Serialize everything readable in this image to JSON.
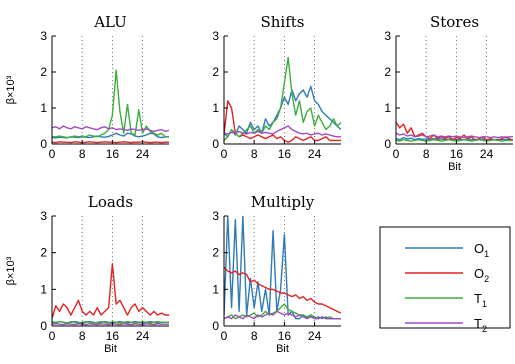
{
  "chart_data": [
    {
      "type": "line",
      "title": "ALU",
      "xlabel": "",
      "ylabel": "β×10³",
      "xlim": [
        0,
        31
      ],
      "ylim": [
        0,
        3
      ],
      "xticks": [
        0,
        8,
        16,
        24
      ],
      "yticks": [
        0,
        1,
        2,
        3
      ],
      "vlines": [
        8,
        16,
        24
      ],
      "series": [
        {
          "key": "O1",
          "values": [
            0.18,
            0.17,
            0.19,
            0.18,
            0.17,
            0.2,
            0.19,
            0.18,
            0.2,
            0.19,
            0.18,
            0.2,
            0.22,
            0.2,
            0.19,
            0.21,
            0.25,
            0.3,
            0.25,
            0.22,
            0.3,
            0.28,
            0.22,
            0.2,
            0.22,
            0.25,
            0.3,
            0.28,
            0.2,
            0.18,
            0.2,
            0.19
          ]
        },
        {
          "key": "O2",
          "values": [
            0.05,
            0.04,
            0.06,
            0.05,
            0.05,
            0.04,
            0.06,
            0.05,
            0.04,
            0.05,
            0.06,
            0.05,
            0.04,
            0.05,
            0.06,
            0.05,
            0.05,
            0.04,
            0.05,
            0.06,
            0.05,
            0.04,
            0.05,
            0.05,
            0.06,
            0.05,
            0.04,
            0.05,
            0.05,
            0.04,
            0.05,
            0.05
          ]
        },
        {
          "key": "T1",
          "values": [
            0.2,
            0.2,
            0.22,
            0.2,
            0.18,
            0.2,
            0.22,
            0.2,
            0.22,
            0.2,
            0.25,
            0.22,
            0.2,
            0.25,
            0.3,
            0.4,
            0.8,
            2.05,
            0.9,
            0.3,
            1.1,
            0.3,
            0.25,
            0.95,
            0.3,
            0.5,
            0.35,
            0.3,
            0.25,
            0.3,
            0.2,
            0.2
          ]
        },
        {
          "key": "T2",
          "values": [
            0.45,
            0.48,
            0.42,
            0.5,
            0.45,
            0.42,
            0.48,
            0.45,
            0.42,
            0.48,
            0.45,
            0.42,
            0.4,
            0.45,
            0.48,
            0.42,
            0.45,
            0.4,
            0.42,
            0.4,
            0.38,
            0.42,
            0.4,
            0.38,
            0.4,
            0.42,
            0.38,
            0.35,
            0.38,
            0.4,
            0.35,
            0.38
          ]
        }
      ]
    },
    {
      "type": "line",
      "title": "Shifts",
      "xlabel": "",
      "ylabel": "",
      "xlim": [
        0,
        31
      ],
      "ylim": [
        0,
        3
      ],
      "xticks": [
        0,
        8,
        16,
        24
      ],
      "yticks": [
        0,
        1,
        2,
        3
      ],
      "vlines": [
        8,
        16,
        24
      ],
      "series": [
        {
          "key": "O1",
          "values": [
            0.3,
            0.2,
            0.4,
            0.25,
            0.5,
            0.4,
            0.3,
            0.6,
            0.4,
            0.5,
            0.3,
            0.7,
            0.5,
            0.6,
            0.8,
            1.0,
            1.3,
            1.1,
            1.5,
            1.2,
            1.4,
            1.5,
            1.3,
            1.6,
            1.2,
            1.1,
            0.9,
            0.8,
            0.7,
            0.6,
            0.5,
            0.4
          ]
        },
        {
          "key": "O2",
          "values": [
            0.25,
            1.2,
            1.0,
            0.3,
            0.2,
            0.25,
            0.2,
            0.15,
            0.2,
            0.25,
            0.2,
            0.15,
            0.2,
            0.25,
            0.15,
            0.2,
            0.1,
            0.05,
            0.1,
            0.2,
            0.15,
            0.1,
            0.15,
            0.2,
            0.1,
            0.1,
            0.15,
            0.2,
            0.1,
            0.1,
            0.1,
            0.1
          ]
        },
        {
          "key": "T1",
          "values": [
            0.1,
            0.2,
            0.4,
            0.3,
            0.2,
            0.3,
            0.4,
            0.5,
            0.3,
            0.4,
            0.3,
            0.5,
            0.4,
            0.6,
            0.7,
            1.0,
            1.7,
            2.4,
            1.4,
            0.8,
            1.2,
            0.6,
            0.9,
            1.0,
            0.5,
            0.8,
            0.6,
            0.4,
            0.5,
            0.7,
            0.5,
            0.6
          ]
        },
        {
          "key": "T2",
          "values": [
            0.3,
            0.28,
            0.32,
            0.3,
            0.35,
            0.3,
            0.28,
            0.32,
            0.3,
            0.35,
            0.3,
            0.32,
            0.3,
            0.28,
            0.35,
            0.4,
            0.45,
            0.5,
            0.4,
            0.35,
            0.3,
            0.28,
            0.3,
            0.25,
            0.28,
            0.3,
            0.25,
            0.28,
            0.25,
            0.22,
            0.2,
            0.2
          ]
        }
      ]
    },
    {
      "type": "line",
      "title": "Stores",
      "xlabel": "Bit",
      "ylabel": "",
      "xlim": [
        0,
        31
      ],
      "ylim": [
        0,
        3
      ],
      "xticks": [
        0,
        8,
        16,
        24
      ],
      "yticks": [
        0,
        1,
        2,
        3
      ],
      "vlines": [
        8,
        16,
        24
      ],
      "series": [
        {
          "key": "O1",
          "values": [
            0.15,
            0.12,
            0.18,
            0.14,
            0.16,
            0.12,
            0.15,
            0.13,
            0.14,
            0.12,
            0.15,
            0.13,
            0.14,
            0.12,
            0.13,
            0.14,
            0.12,
            0.13,
            0.12,
            0.14,
            0.12,
            0.13,
            0.12,
            0.14,
            0.12,
            0.13,
            0.12,
            0.13,
            0.12,
            0.13,
            0.12,
            0.12
          ]
        },
        {
          "key": "O2",
          "values": [
            0.6,
            0.45,
            0.55,
            0.3,
            0.45,
            0.2,
            0.25,
            0.3,
            0.2,
            0.15,
            0.25,
            0.15,
            0.2,
            0.15,
            0.2,
            0.12,
            0.18,
            0.15,
            0.25,
            0.15,
            0.2,
            0.1,
            0.15,
            0.2,
            0.1,
            0.15,
            0.12,
            0.1,
            0.15,
            0.2,
            0.15,
            0.1
          ]
        },
        {
          "key": "T1",
          "values": [
            0.1,
            0.08,
            0.12,
            0.1,
            0.08,
            0.1,
            0.12,
            0.1,
            0.08,
            0.1,
            0.12,
            0.1,
            0.08,
            0.1,
            0.12,
            0.1,
            0.08,
            0.1,
            0.12,
            0.1,
            0.08,
            0.1,
            0.12,
            0.1,
            0.08,
            0.1,
            0.12,
            0.1,
            0.08,
            0.1,
            0.1,
            0.1
          ]
        },
        {
          "key": "T2",
          "values": [
            0.3,
            0.25,
            0.28,
            0.22,
            0.25,
            0.2,
            0.22,
            0.25,
            0.2,
            0.22,
            0.25,
            0.2,
            0.22,
            0.2,
            0.22,
            0.2,
            0.22,
            0.2,
            0.18,
            0.2,
            0.22,
            0.2,
            0.18,
            0.2,
            0.2,
            0.18,
            0.2,
            0.18,
            0.2,
            0.18,
            0.2,
            0.2
          ]
        }
      ]
    },
    {
      "type": "line",
      "title": "Loads",
      "xlabel": "Bit",
      "ylabel": "β×10³",
      "xlim": [
        0,
        31
      ],
      "ylim": [
        0,
        3
      ],
      "xticks": [
        0,
        8,
        16,
        24
      ],
      "yticks": [
        0,
        1,
        2,
        3
      ],
      "vlines": [
        8,
        16,
        24
      ],
      "series": [
        {
          "key": "O1",
          "values": [
            0.1,
            0.08,
            0.12,
            0.1,
            0.08,
            0.1,
            0.12,
            0.1,
            0.08,
            0.1,
            0.12,
            0.1,
            0.08,
            0.1,
            0.12,
            0.1,
            0.08,
            0.1,
            0.12,
            0.1,
            0.08,
            0.1,
            0.12,
            0.1,
            0.08,
            0.1,
            0.12,
            0.1,
            0.08,
            0.1,
            0.1,
            0.1
          ]
        },
        {
          "key": "O2",
          "values": [
            0.2,
            0.55,
            0.4,
            0.6,
            0.5,
            0.3,
            0.5,
            0.7,
            0.4,
            0.3,
            0.4,
            0.3,
            0.5,
            0.3,
            0.4,
            0.5,
            1.7,
            0.6,
            0.7,
            0.5,
            0.3,
            0.5,
            0.6,
            0.4,
            0.5,
            0.4,
            0.3,
            0.4,
            0.3,
            0.35,
            0.3,
            0.3
          ]
        },
        {
          "key": "T1",
          "values": [
            0.12,
            0.1,
            0.12,
            0.1,
            0.08,
            0.12,
            0.1,
            0.08,
            0.1,
            0.12,
            0.1,
            0.08,
            0.1,
            0.12,
            0.1,
            0.08,
            0.12,
            0.1,
            0.08,
            0.1,
            0.12,
            0.1,
            0.08,
            0.1,
            0.12,
            0.1,
            0.08,
            0.1,
            0.12,
            0.1,
            0.1,
            0.1
          ]
        },
        {
          "key": "T2",
          "values": [
            0.05,
            0.06,
            0.05,
            0.04,
            0.06,
            0.05,
            0.04,
            0.06,
            0.05,
            0.04,
            0.06,
            0.05,
            0.04,
            0.06,
            0.05,
            0.04,
            0.06,
            0.05,
            0.04,
            0.06,
            0.05,
            0.04,
            0.06,
            0.05,
            0.04,
            0.06,
            0.05,
            0.04,
            0.06,
            0.05,
            0.05,
            0.05
          ]
        }
      ]
    },
    {
      "type": "line",
      "title": "Multiply",
      "xlabel": "Bit",
      "ylabel": "",
      "xlim": [
        0,
        31
      ],
      "ylim": [
        0,
        3
      ],
      "xticks": [
        0,
        8,
        16,
        24
      ],
      "yticks": [
        0,
        1,
        2,
        3
      ],
      "vlines": [
        8,
        16,
        24
      ],
      "series": [
        {
          "key": "O1",
          "values": [
            0.3,
            3.0,
            0.5,
            2.9,
            0.4,
            3.0,
            0.3,
            1.3,
            0.5,
            1.2,
            0.4,
            1.0,
            0.3,
            2.6,
            0.4,
            1.0,
            2.5,
            0.3,
            0.4,
            0.2,
            0.2,
            0.3,
            0.2,
            0.3,
            0.2,
            0.25,
            0.2,
            0.25,
            0.2,
            0.2,
            0.2,
            0.2
          ]
        },
        {
          "key": "O2",
          "values": [
            1.6,
            1.5,
            1.45,
            1.5,
            1.4,
            1.45,
            1.4,
            1.2,
            1.25,
            1.15,
            1.1,
            1.05,
            1.0,
            1.0,
            0.95,
            0.9,
            0.9,
            0.85,
            0.8,
            0.85,
            0.75,
            0.8,
            0.7,
            0.75,
            0.65,
            0.6,
            0.6,
            0.55,
            0.5,
            0.45,
            0.4,
            0.35
          ]
        },
        {
          "key": "T1",
          "values": [
            0.2,
            0.25,
            0.3,
            0.2,
            0.25,
            0.3,
            0.25,
            0.3,
            0.35,
            0.25,
            0.3,
            0.4,
            0.3,
            0.35,
            0.4,
            0.5,
            0.6,
            0.45,
            0.4,
            0.35,
            0.3,
            0.3,
            0.25,
            0.3,
            0.25,
            0.2,
            0.25,
            0.2,
            0.25,
            0.2,
            0.2,
            0.2
          ]
        },
        {
          "key": "T2",
          "values": [
            0.2,
            0.25,
            0.2,
            0.3,
            0.25,
            0.2,
            0.3,
            0.25,
            0.2,
            0.3,
            0.25,
            0.3,
            0.35,
            0.3,
            0.4,
            0.35,
            0.3,
            0.35,
            0.3,
            0.25,
            0.3,
            0.25,
            0.2,
            0.25,
            0.2,
            0.2,
            0.25,
            0.2,
            0.2,
            0.2,
            0.2,
            0.2
          ]
        }
      ]
    }
  ],
  "legend": [
    {
      "key": "O1",
      "main": "O",
      "sub": "1",
      "color": "#2f7ab8"
    },
    {
      "key": "O2",
      "main": "O",
      "sub": "2",
      "color": "#e32222"
    },
    {
      "key": "T1",
      "main": "T",
      "sub": "1",
      "color": "#3cae3c"
    },
    {
      "key": "T2",
      "main": "T",
      "sub": "2",
      "color": "#a04bbf"
    }
  ]
}
